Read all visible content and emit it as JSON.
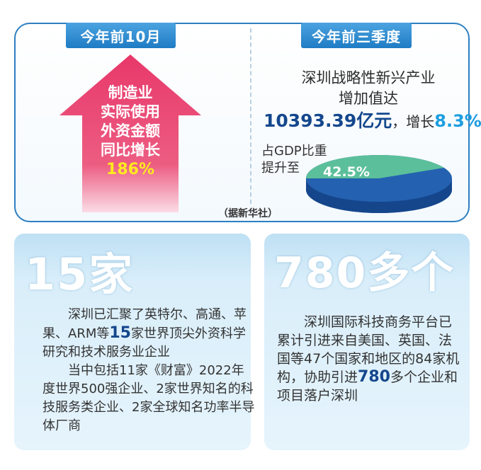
{
  "top": {
    "left_tab": "今年前10月",
    "right_tab": "今年前三季度",
    "arrow_lines": [
      "制造业",
      "实际使用",
      "外资金额",
      "同比增长"
    ],
    "arrow_percent": "186%",
    "right_title_line1": "深圳战略性新兴产业",
    "right_title_line2": "增加值达",
    "right_value": "10393.39亿元",
    "right_growth_prefix": "，增长",
    "right_growth": "8.3%",
    "gdp_label_line1": "占GDP比重",
    "gdp_label_line2": "提升至",
    "gdp_percent": "42.5%",
    "gdp_share": 0.425,
    "source": "（据新华社）",
    "colors": {
      "arrow": "#e8386a",
      "pie_main": "#2462b1",
      "pie_slice": "#5cbf9b"
    }
  },
  "left_card": {
    "head": "15家",
    "p1_a": "深圳已汇聚了英特尔、高通、苹果、ARM等",
    "p1_num": "15",
    "p1_b": "家世界顶尖外资科学研究和技术服务业企业",
    "p2": "当中包括11家《财富》2022年度世界500强企业、2家世界知名的科技服务类企业、2家全球知名功率半导体厂商"
  },
  "right_card": {
    "head": "780多个",
    "p_a": "深圳国际科技商务平台已累计引进来自美国、英国、法国等47个国家和地区的84家机构，协助引进",
    "p_num": "780",
    "p_b": "多个企业和项目落户深圳"
  }
}
